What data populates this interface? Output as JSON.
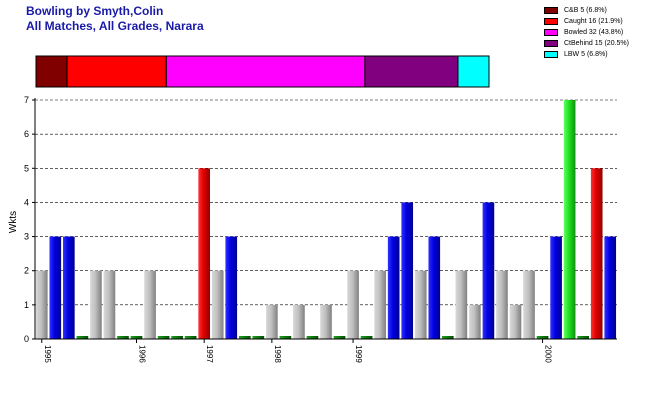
{
  "page": {
    "title_line1": "Bowling by Smyth,Colin",
    "title_line2": "All Matches, All Grades, Narara"
  },
  "legend": [
    {
      "label": "C&B 5 (6.8%)",
      "color": "#800000"
    },
    {
      "label": "Caught 16 (21.9%)",
      "color": "#ff0000"
    },
    {
      "label": "Bowled 32 (43.8%)",
      "color": "#ff00ff"
    },
    {
      "label": "CtBehind 15 (20.5%)",
      "color": "#800080"
    },
    {
      "label": "LBW 5 (6.8%)",
      "color": "#00ffff"
    }
  ],
  "chart_data": {
    "type": "bar",
    "ylabel": "Wkts",
    "ylim": [
      0,
      7
    ],
    "yticks": [
      "0",
      "1",
      "2",
      "3",
      "4",
      "5",
      "6",
      "7"
    ],
    "grid": true,
    "values": [
      2,
      3,
      3,
      0,
      2,
      2,
      0,
      0,
      2,
      0,
      0,
      0,
      5,
      2,
      3,
      0,
      0,
      1,
      0,
      1,
      0,
      1,
      0,
      2,
      0,
      2,
      3,
      4,
      2,
      3,
      0,
      2,
      1,
      4,
      2,
      1,
      2,
      0,
      3,
      7,
      0,
      5,
      3
    ],
    "bar_colors": [
      "gray",
      "blue",
      "blue",
      "green",
      "gray",
      "gray",
      "green",
      "green",
      "gray",
      "green",
      "green",
      "green",
      "red",
      "gray",
      "blue",
      "green",
      "green",
      "gray",
      "green",
      "gray",
      "green",
      "gray",
      "green",
      "gray",
      "green",
      "gray",
      "blue",
      "blue",
      "gray",
      "blue",
      "green",
      "gray",
      "gray",
      "blue",
      "gray",
      "gray",
      "gray",
      "green",
      "blue",
      "lime",
      "green",
      "red",
      "blue"
    ],
    "x_labels": [
      {
        "label": "1995",
        "index": 0
      },
      {
        "label": "1996",
        "index": 7
      },
      {
        "label": "1997",
        "index": 12
      },
      {
        "label": "1998",
        "index": 17
      },
      {
        "label": "1999",
        "index": 23
      },
      {
        "label": "2000",
        "index": 37
      }
    ],
    "dismissal_strip": [
      {
        "name": "C&B",
        "value": 5,
        "color": "#800000"
      },
      {
        "name": "Caught",
        "value": 16,
        "color": "#ff0000"
      },
      {
        "name": "Bowled",
        "value": 32,
        "color": "#ff00ff"
      },
      {
        "name": "CtBehind",
        "value": 15,
        "color": "#800080"
      },
      {
        "name": "LBW",
        "value": 5,
        "color": "#00ffff"
      }
    ]
  }
}
